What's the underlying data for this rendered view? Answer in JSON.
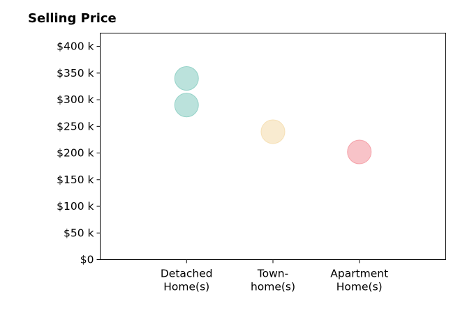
{
  "chart_data": {
    "type": "scatter",
    "title": "Selling Price",
    "xlabel": "",
    "ylabel": "",
    "categories": [
      [
        "Detached",
        "Home(s)"
      ],
      [
        "Town-",
        "home(s)"
      ],
      [
        "Apartment",
        "Home(s)"
      ]
    ],
    "y_ticks": [
      0,
      50000,
      100000,
      150000,
      200000,
      250000,
      300000,
      350000,
      400000
    ],
    "y_tick_labels": [
      "$0",
      "$50 k",
      "$100 k",
      "$150 k",
      "$200 k",
      "$250 k",
      "$300 k",
      "$350 k",
      "$400 k"
    ],
    "ylim": [
      0,
      425000
    ],
    "xlim": [
      0,
      4
    ],
    "grid": false,
    "points": [
      {
        "category_index": 0,
        "y": 340000,
        "color": "#8ecfc4"
      },
      {
        "category_index": 0,
        "y": 290000,
        "color": "#8ecfc4"
      },
      {
        "category_index": 1,
        "y": 240000,
        "color": "#f5deb0"
      },
      {
        "category_index": 2,
        "y": 202000,
        "color": "#f49ba3"
      }
    ]
  }
}
